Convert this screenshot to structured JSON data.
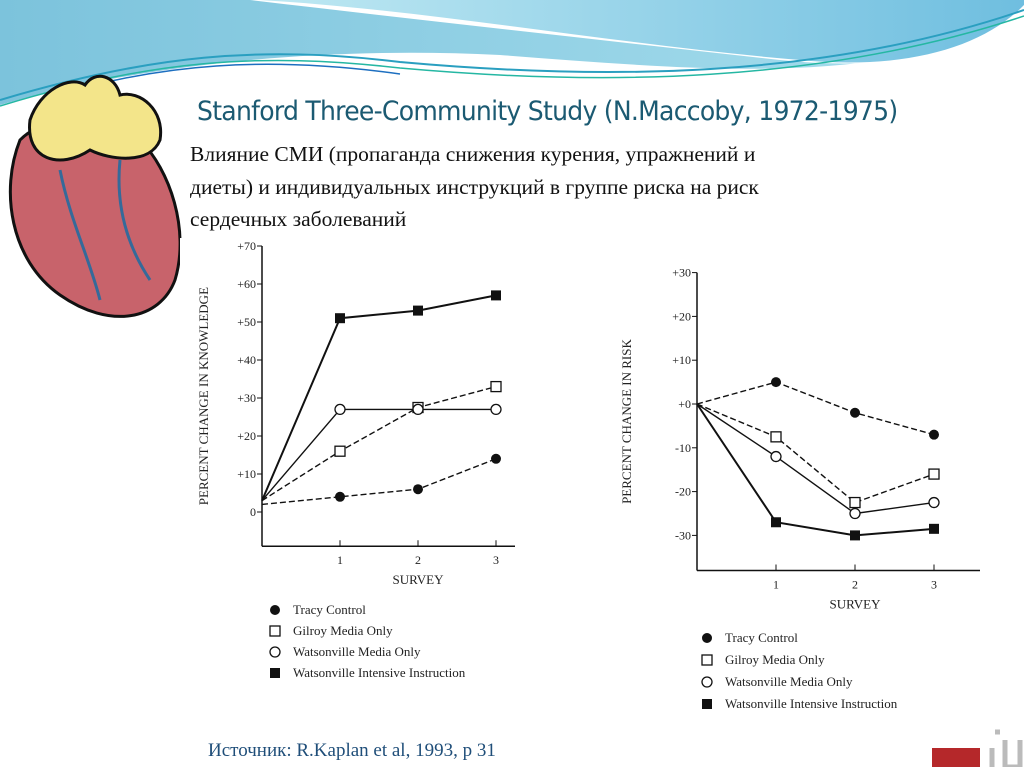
{
  "slide": {
    "title": "Stanford Three-Community Study (N.Maccoby, 1972-1975)",
    "subtitle_lines": [
      "Влияние СМИ (пропаганда снижения курения, упражнений и",
      "диеты) и индивидуальных инструкций в группе риска на риск",
      "сердечных заболеваний"
    ],
    "source": "Источник: R.Kaplan et al, 1993, p 31",
    "logo_text": "MSU building logo"
  },
  "chart_data": [
    {
      "type": "line",
      "title": "",
      "xlabel": "SURVEY",
      "ylabel": "PERCENT CHANGE IN KNOWLEDGE",
      "x": [
        0,
        1,
        2,
        3
      ],
      "x_tick_labels": [
        "1",
        "2",
        "3"
      ],
      "y_tick_labels": [
        "0",
        "+10",
        "+20",
        "+30",
        "+40",
        "+50",
        "+60",
        "+70"
      ],
      "ylim": [
        -9,
        70
      ],
      "grid": false,
      "legend_placement": "bottom",
      "series": [
        {
          "name": "Tracy Control",
          "marker": "filled-circle",
          "dash": true,
          "values": [
            2,
            4,
            6,
            14
          ]
        },
        {
          "name": "Gilroy Media Only",
          "marker": "open-square",
          "dash": true,
          "values": [
            3,
            16,
            27.5,
            33
          ]
        },
        {
          "name": "Watsonville Media Only",
          "marker": "open-circle",
          "dash": false,
          "values": [
            3,
            27,
            27,
            27
          ]
        },
        {
          "name": "Watsonville Intensive Instruction",
          "marker": "filled-square",
          "dash": false,
          "values": [
            3,
            51,
            53,
            57
          ]
        }
      ]
    },
    {
      "type": "line",
      "title": "",
      "xlabel": "SURVEY",
      "ylabel": "PERCENT CHANGE IN RISK",
      "x": [
        0,
        1,
        2,
        3
      ],
      "x_tick_labels": [
        "1",
        "2",
        "3"
      ],
      "y_tick_labels": [
        "+30",
        "+20",
        "+10",
        "+0",
        "-10",
        "-20",
        "-30"
      ],
      "ylim": [
        -38,
        30
      ],
      "grid": false,
      "legend_placement": "bottom",
      "series": [
        {
          "name": "Tracy Control",
          "marker": "filled-circle",
          "dash": true,
          "values": [
            0,
            5,
            -2,
            -7
          ]
        },
        {
          "name": "Gilroy Media Only",
          "marker": "open-square",
          "dash": true,
          "values": [
            0,
            -7.5,
            -22.5,
            -16
          ]
        },
        {
          "name": "Watsonville Media Only",
          "marker": "open-circle",
          "dash": false,
          "values": [
            0,
            -12,
            -25,
            -22.5
          ]
        },
        {
          "name": "Watsonville Intensive Instruction",
          "marker": "filled-square",
          "dash": false,
          "values": [
            0,
            -27,
            -30,
            -28.5
          ]
        }
      ]
    }
  ]
}
